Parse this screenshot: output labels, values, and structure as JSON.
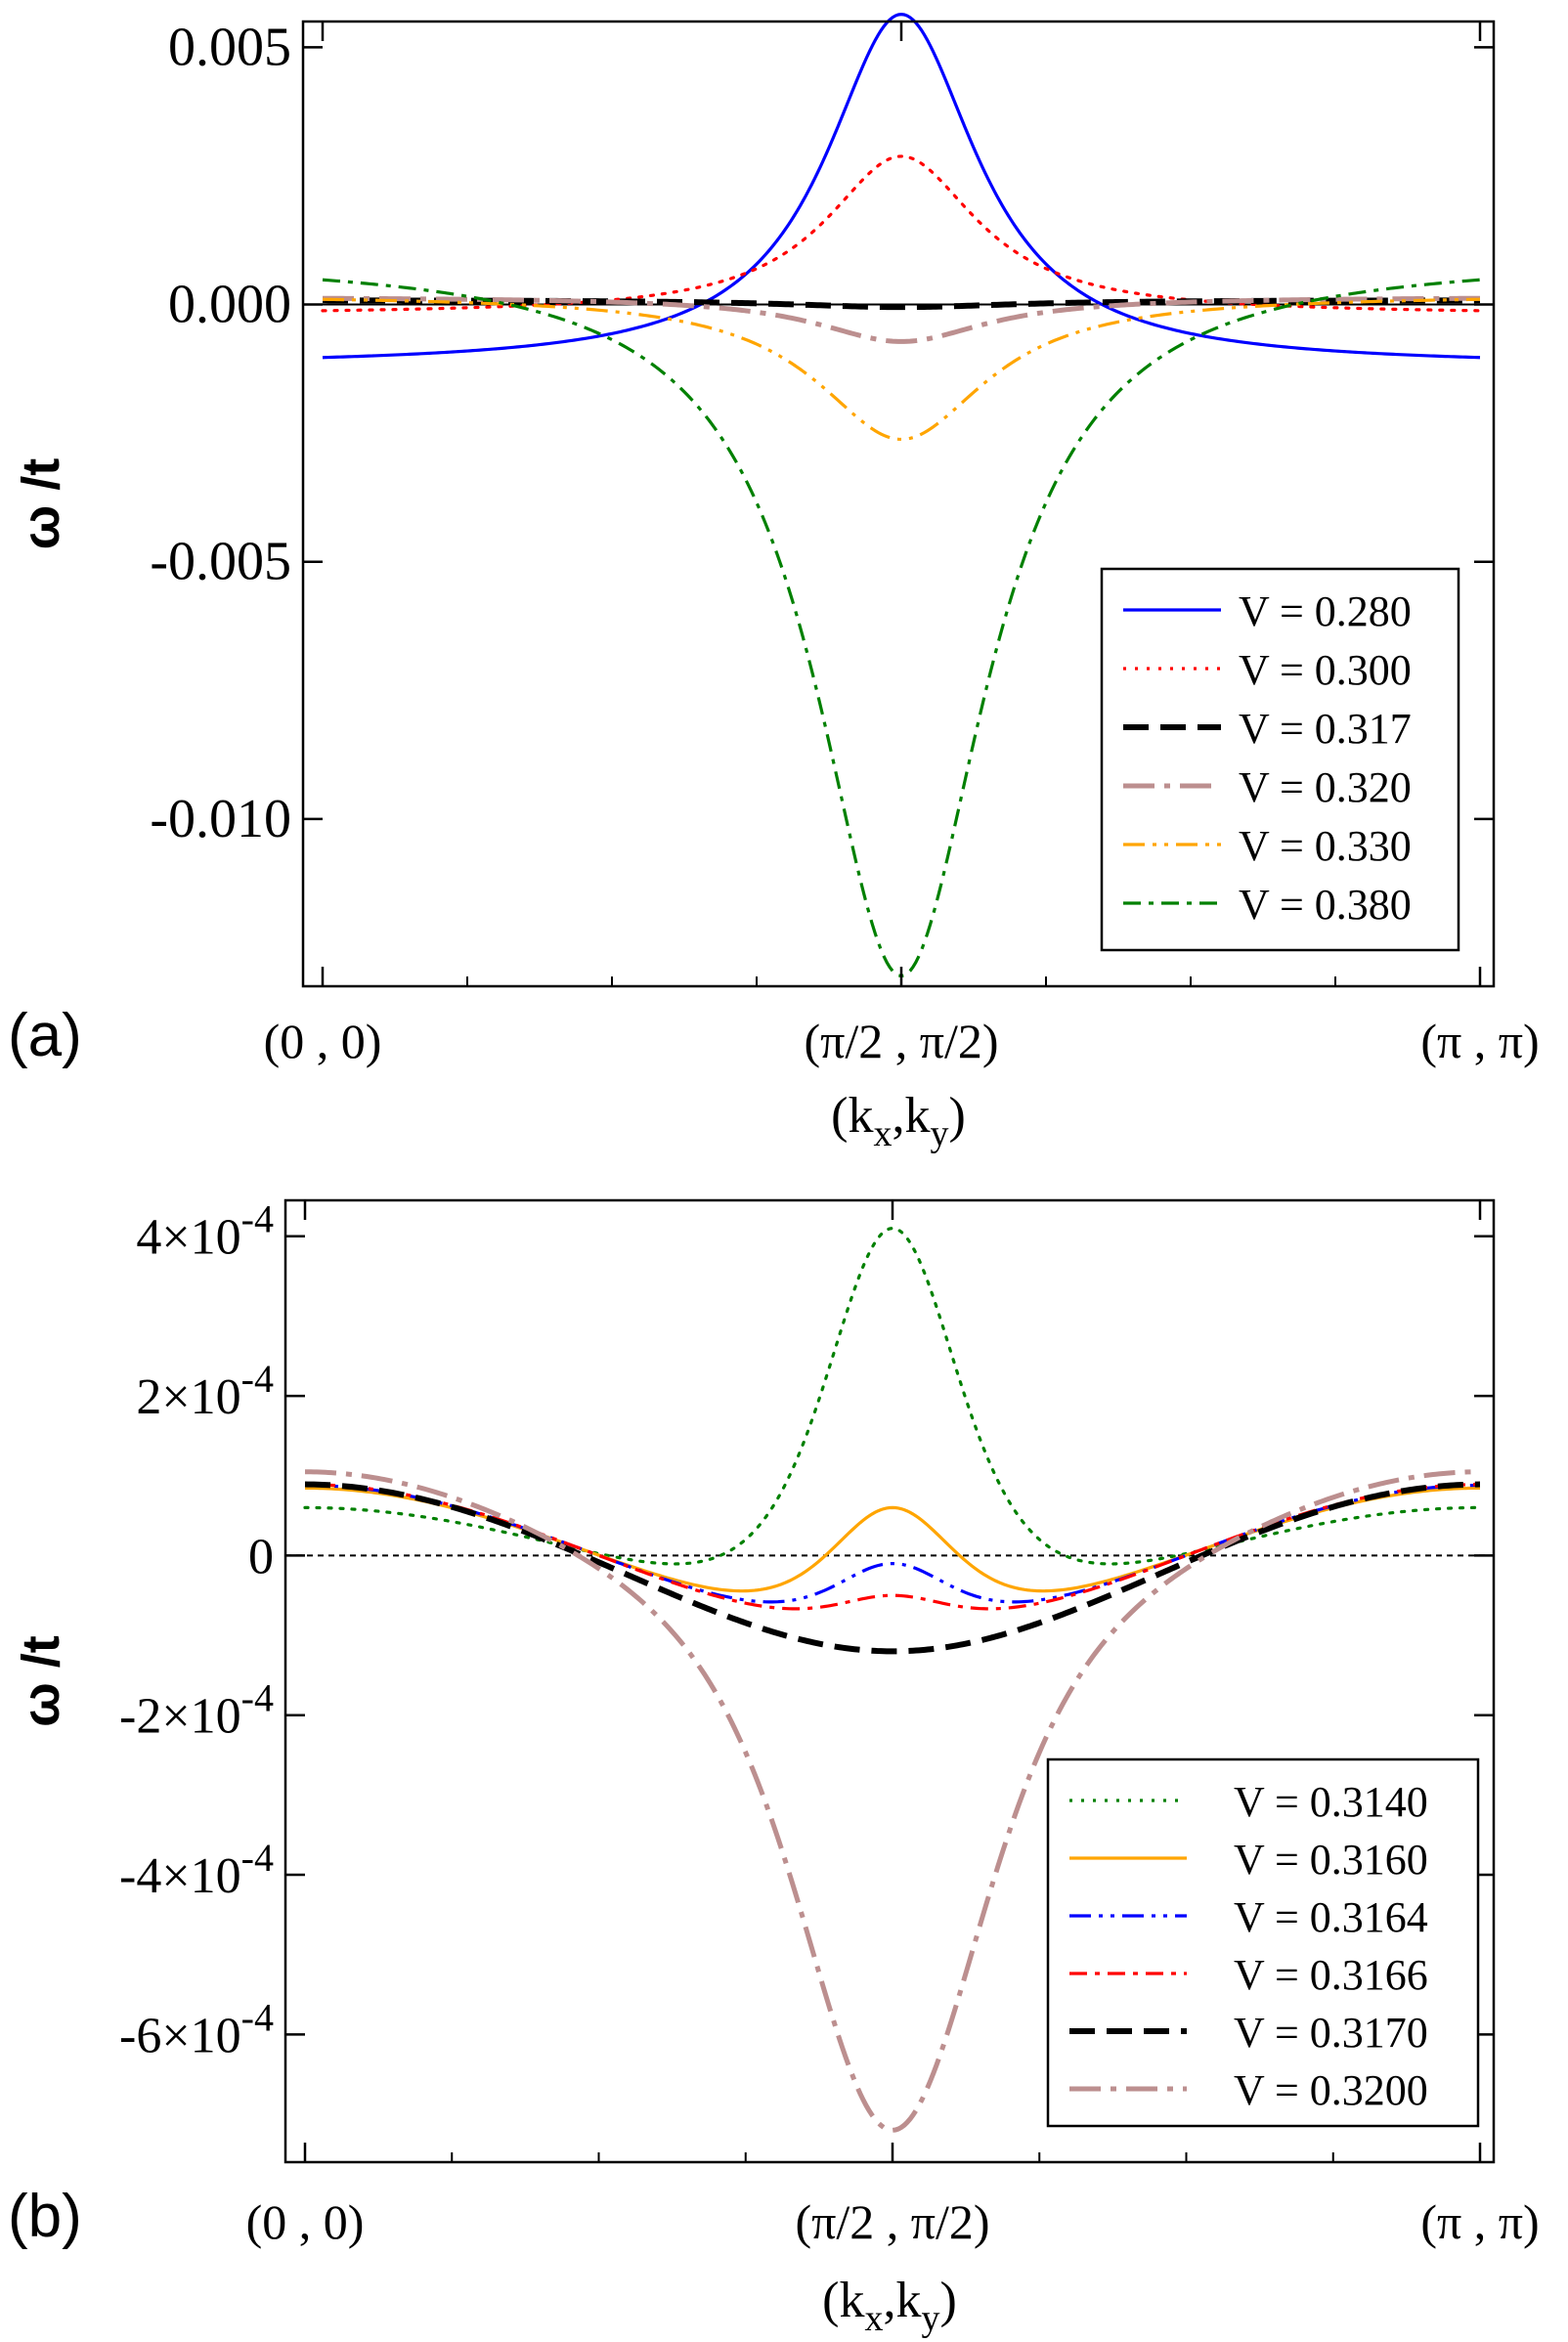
{
  "chart_data": [
    {
      "panel_label": "(a)",
      "type": "line",
      "xlabel": "(k",
      "xlabel_sub1": "x",
      "xlabel_mid": ",k",
      "xlabel_sub2": "y",
      "xlabel_end": ")",
      "ylabel": "ω /t",
      "xlim": [
        0,
        1
      ],
      "ylim": [
        -0.01325,
        0.0055
      ],
      "x_ticks": [
        {
          "value": 0,
          "label": "(0 , 0)"
        },
        {
          "value": 0.5,
          "label": "(π/2 , π/2)"
        },
        {
          "value": 1,
          "label": "(π , π)"
        }
      ],
      "y_ticks": [
        {
          "value": 0.005,
          "label": "0.005"
        },
        {
          "value": 0.0,
          "label": "0.000"
        },
        {
          "value": -0.005,
          "label": "-0.005"
        },
        {
          "value": -0.01,
          "label": "-0.010"
        }
      ],
      "zero_line": true,
      "legend_position": "bottom-right",
      "series": [
        {
          "name": "V = 0.280",
          "color": "#0000ff",
          "dash": "solid",
          "center": 0.00564,
          "edge": -0.00103,
          "width": 0.08
        },
        {
          "name": "V = 0.300",
          "color": "#ff0000",
          "dash": "dot",
          "center": 0.00288,
          "edge": -0.00012,
          "width": 0.08
        },
        {
          "name": "V = 0.317",
          "color": "#000000",
          "dash": "dash",
          "center": -5e-05,
          "edge": 8e-05,
          "width": 0.12
        },
        {
          "name": "V = 0.320",
          "color": "#bc8f8f",
          "dash": "dashdot",
          "center": -0.00072,
          "edge": 0.00012,
          "width": 0.09
        },
        {
          "name": "V = 0.330",
          "color": "#ffa500",
          "dash": "dashdotdot",
          "center": -0.00262,
          "edge": 0.0001,
          "width": 0.09
        },
        {
          "name": "V = 0.380",
          "color": "#008000",
          "dash": "dashdot2",
          "center": -0.01305,
          "edge": 0.00048,
          "width": 0.09
        }
      ]
    },
    {
      "panel_label": "(b)",
      "type": "line",
      "xlabel": "(k",
      "xlabel_sub1": "x",
      "xlabel_mid": ",k",
      "xlabel_sub2": "y",
      "xlabel_end": ")",
      "ylabel": "ω /t",
      "xlim": [
        0,
        1
      ],
      "ylim": [
        -0.00076,
        0.000445
      ],
      "x_ticks": [
        {
          "value": 0,
          "label": "(0 , 0)"
        },
        {
          "value": 0.5,
          "label": "(π/2 , π/2)"
        },
        {
          "value": 1,
          "label": "(π , π)"
        }
      ],
      "y_ticks": [
        {
          "value": 0.0004,
          "mant": "4×10",
          "exp": "-4"
        },
        {
          "value": 0.0002,
          "mant": "2×10",
          "exp": "-4"
        },
        {
          "value": 0,
          "mant": "0",
          "exp": ""
        },
        {
          "value": -0.0002,
          "mant": "-2×10",
          "exp": "-4"
        },
        {
          "value": -0.0004,
          "mant": "-4×10",
          "exp": "-4"
        },
        {
          "value": -0.0006,
          "mant": "-6×10",
          "exp": "-4"
        }
      ],
      "zero_line": true,
      "legend_position": "bottom-right",
      "series": [
        {
          "name": "V = 0.3140",
          "color": "#008000",
          "dash": "dot",
          "c": 6e-05,
          "b": 0.00029,
          "center": 0.00041,
          "width": 0.075
        },
        {
          "name": "V = 0.3160",
          "color": "#ffa500",
          "dash": "solid",
          "c": 8.45e-05,
          "b": 0.000196,
          "center": 6e-05,
          "width": 0.07
        },
        {
          "name": "V = 0.3164",
          "color": "#0000ff",
          "dash": "dashdotdot",
          "c": 8.8e-05,
          "b": 0.00018,
          "center": -1e-05,
          "width": 0.065
        },
        {
          "name": "V = 0.3166",
          "color": "#ff0000",
          "dash": "dashdot2",
          "c": 8.9e-05,
          "b": 0.000177,
          "center": -5e-05,
          "width": 0.065
        },
        {
          "name": "V = 0.3170",
          "color": "#000000",
          "dash": "dash",
          "c": 9e-05,
          "b": 0.00021,
          "center": -0.00012,
          "width": 0.2
        },
        {
          "name": "V = 0.3200",
          "color": "#bc8f8f",
          "dash": "dashdot",
          "c": 0.000105,
          "b": 0.0,
          "center": -0.00072,
          "width": 0.1
        }
      ]
    }
  ]
}
